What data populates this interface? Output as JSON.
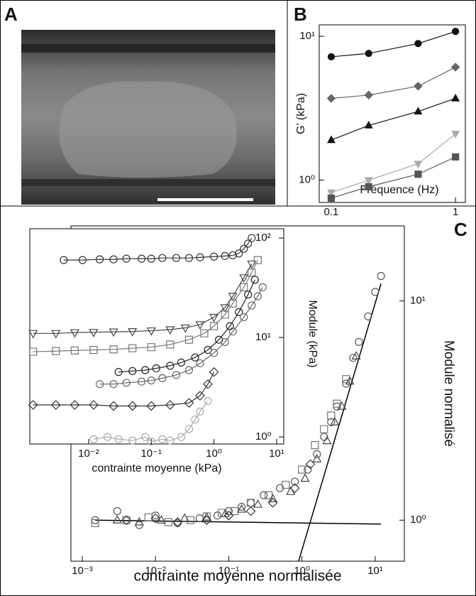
{
  "image_panel": {
    "label": "A"
  },
  "chart_data": [
    {
      "type": "line",
      "panel": "B",
      "xlabel": "Fréquence (Hz)",
      "ylabel": "G’ (kPa)",
      "log_x": true,
      "log_y": true,
      "xlim": [
        0.08,
        1.2
      ],
      "ylim": [
        0.7,
        12
      ],
      "xticks": [
        0.1,
        1
      ],
      "yticks": [
        {
          "value": 1,
          "label": "10⁰"
        },
        {
          "value": 10,
          "label": "10¹"
        }
      ],
      "x": [
        0.1,
        0.2,
        0.5,
        1
      ],
      "series": [
        {
          "color": "#111111",
          "marker": "circle",
          "filled": true,
          "values": [
            7.2,
            7.6,
            8.9,
            10.8
          ]
        },
        {
          "color": "#666666",
          "marker": "diamond",
          "filled": true,
          "values": [
            3.7,
            3.9,
            4.5,
            6.1
          ]
        },
        {
          "color": "#111111",
          "marker": "triangle",
          "filled": true,
          "values": [
            1.9,
            2.4,
            3.0,
            3.7
          ]
        },
        {
          "color": "#aaaaaa",
          "marker": "triangle-down",
          "filled": true,
          "values": [
            0.82,
            1.0,
            1.3,
            2.1
          ]
        },
        {
          "color": "#555555",
          "marker": "square",
          "filled": true,
          "values": [
            0.75,
            0.9,
            1.1,
            1.45
          ]
        }
      ]
    },
    {
      "type": "scatter",
      "panel": "C",
      "xlabel": "contrainte moyenne normalisée",
      "ylabel": "Module normalisé",
      "log_x": true,
      "log_y": true,
      "xlim": [
        0.0007,
        25
      ],
      "ylim": [
        0.65,
        22
      ],
      "xticks": [
        {
          "value": 0.001,
          "label": "10⁻³"
        },
        {
          "value": 0.01,
          "label": "10⁻²"
        },
        {
          "value": 0.1,
          "label": "10⁻¹"
        },
        {
          "value": 1,
          "label": "10⁰"
        },
        {
          "value": 10,
          "label": "10¹"
        }
      ],
      "yticks": [
        {
          "value": 1,
          "label": "10⁰"
        },
        {
          "value": 10,
          "label": "10¹"
        }
      ],
      "connect": false,
      "lines": [
        {
          "x": [
            0.0015,
            12
          ],
          "y": [
            1,
            0.96
          ]
        },
        {
          "x": [
            0.9,
            12
          ],
          "y": [
            0.65,
            12
          ]
        }
      ],
      "series": [
        {
          "color": "#555555",
          "marker": "circle",
          "filled": false,
          "x": [
            0.0015,
            0.003,
            0.006,
            0.01,
            0.02,
            0.04,
            0.07,
            0.1,
            0.15,
            0.2,
            0.3,
            0.5,
            0.8,
            1.2,
            1.6,
            2,
            2.5,
            3,
            4,
            5,
            6,
            8,
            10,
            12
          ],
          "values": [
            1,
            1.1,
            0.95,
            1.05,
            0.97,
            1.02,
            1.05,
            1.1,
            1.15,
            1.2,
            1.3,
            1.4,
            1.5,
            1.7,
            2,
            2.4,
            2.8,
            3.3,
            4.2,
            5.5,
            6.5,
            8.5,
            11,
            13
          ]
        },
        {
          "color": "#777777",
          "marker": "square",
          "filled": false,
          "x": [
            0.0015,
            0.004,
            0.008,
            0.015,
            0.03,
            0.05,
            0.08,
            0.12,
            0.2,
            0.35,
            0.6,
            1,
            1.5,
            2,
            2.5,
            3,
            4
          ],
          "values": [
            0.97,
            1,
            1.03,
            0.98,
            1,
            1.04,
            1.08,
            1.1,
            1.2,
            1.3,
            1.45,
            1.7,
            2.2,
            2.6,
            3,
            3.4,
            4.4
          ]
        },
        {
          "color": "#444444",
          "marker": "triangle",
          "filled": false,
          "x": [
            0.003,
            0.006,
            0.012,
            0.025,
            0.05,
            0.09,
            0.15,
            0.25,
            0.4,
            0.7,
            1.1,
            1.6,
            2.2,
            2.8,
            3.5,
            4.5,
            5.5
          ],
          "values": [
            1,
            0.98,
            1,
            1.02,
            1.03,
            1.07,
            1.12,
            1.18,
            1.25,
            1.35,
            1.55,
            1.9,
            2.3,
            2.8,
            3.3,
            4.3,
            5.6
          ]
        },
        {
          "color": "#333333",
          "marker": "diamond",
          "filled": false,
          "x": [
            0.004,
            0.01,
            0.02,
            0.05,
            0.1,
            0.2,
            0.4,
            0.8,
            1.3
          ],
          "values": [
            1,
            1.02,
            0.98,
            1,
            1.05,
            1.1,
            1.2,
            1.4,
            1.8
          ]
        }
      ]
    },
    {
      "type": "scatter",
      "xlabel": "contrainte moyenne (kPa)",
      "ylabel": "Module (kPa)",
      "log_x": true,
      "log_y": true,
      "xlim": [
        0.00115,
        13
      ],
      "ylim": [
        0.85,
        124
      ],
      "xticks": [
        {
          "value": 0.01,
          "label": "10⁻²"
        },
        {
          "value": 0.1,
          "label": "10⁻¹"
        },
        {
          "value": 1,
          "label": "10⁰"
        },
        {
          "value": 10,
          "label": "10¹"
        }
      ],
      "yticks": [
        {
          "value": 1,
          "label": "10⁰"
        },
        {
          "value": 10,
          "label": "10¹"
        },
        {
          "value": 100,
          "label": "10²"
        }
      ],
      "connect": true,
      "series": [
        {
          "color": "#333333",
          "marker": "circle",
          "filled": false,
          "x": [
            0.004,
            0.008,
            0.015,
            0.025,
            0.04,
            0.07,
            0.1,
            0.15,
            0.25,
            0.4,
            0.6,
            1,
            1.5,
            2,
            2.5,
            3,
            3.5,
            4
          ],
          "values": [
            60,
            60,
            61,
            61,
            62,
            62,
            62,
            63,
            63,
            63,
            64,
            65,
            66,
            67,
            70,
            78,
            88,
            100
          ]
        },
        {
          "color": "#444444",
          "marker": "triangle-down",
          "filled": false,
          "x": [
            0.0013,
            0.003,
            0.006,
            0.012,
            0.025,
            0.05,
            0.1,
            0.2,
            0.35,
            0.6,
            1,
            1.5,
            2,
            3,
            4
          ],
          "values": [
            11,
            11,
            11.2,
            11.3,
            11.4,
            11.5,
            11.7,
            12,
            12.5,
            13.5,
            16,
            20,
            26,
            40,
            55
          ]
        },
        {
          "color": "#777777",
          "marker": "square",
          "filled": false,
          "x": [
            0.0013,
            0.003,
            0.006,
            0.012,
            0.025,
            0.05,
            0.1,
            0.2,
            0.4,
            0.7,
            1,
            1.5,
            2,
            3,
            4,
            5
          ],
          "values": [
            7.2,
            7.3,
            7.4,
            7.5,
            7.6,
            7.8,
            8,
            8.5,
            9.5,
            11,
            13,
            17,
            22,
            32,
            45,
            60
          ]
        },
        {
          "color": "#222222",
          "marker": "circle",
          "filled": false,
          "x": [
            0.03,
            0.05,
            0.08,
            0.12,
            0.2,
            0.3,
            0.5,
            0.8,
            1.2,
            1.8,
            2.5,
            3.5,
            4.5
          ],
          "values": [
            4.5,
            4.6,
            4.7,
            4.9,
            5.2,
            5.6,
            6.3,
            7.5,
            9.5,
            13,
            18,
            27,
            38
          ]
        },
        {
          "color": "#666666",
          "marker": "circle",
          "filled": false,
          "x": [
            0.015,
            0.025,
            0.04,
            0.07,
            0.1,
            0.15,
            0.25,
            0.4,
            0.6,
            1,
            1.5,
            2,
            3,
            4,
            5,
            6
          ],
          "values": [
            3.4,
            3.4,
            3.5,
            3.6,
            3.7,
            3.9,
            4.2,
            4.7,
            5.5,
            7,
            9,
            11.5,
            16,
            21,
            26,
            32
          ]
        },
        {
          "color": "#333333",
          "marker": "diamond",
          "filled": false,
          "x": [
            0.0013,
            0.003,
            0.006,
            0.012,
            0.025,
            0.05,
            0.1,
            0.2,
            0.4,
            0.6,
            0.8,
            1
          ],
          "values": [
            2.1,
            2.1,
            2.1,
            2.1,
            2.05,
            2.05,
            2.05,
            2.1,
            2.2,
            2.6,
            3.4,
            4.5
          ]
        },
        {
          "color": "#aaaaaa",
          "marker": "circle",
          "filled": false,
          "x": [
            0.012,
            0.02,
            0.03,
            0.05,
            0.08,
            0.1,
            0.15,
            0.2,
            0.3,
            0.4,
            0.5,
            0.6,
            0.8
          ],
          "values": [
            0.95,
            1,
            0.95,
            0.92,
            1,
            0.9,
            0.95,
            0.92,
            1,
            1.2,
            1.5,
            1.8,
            2.3
          ]
        }
      ]
    }
  ]
}
